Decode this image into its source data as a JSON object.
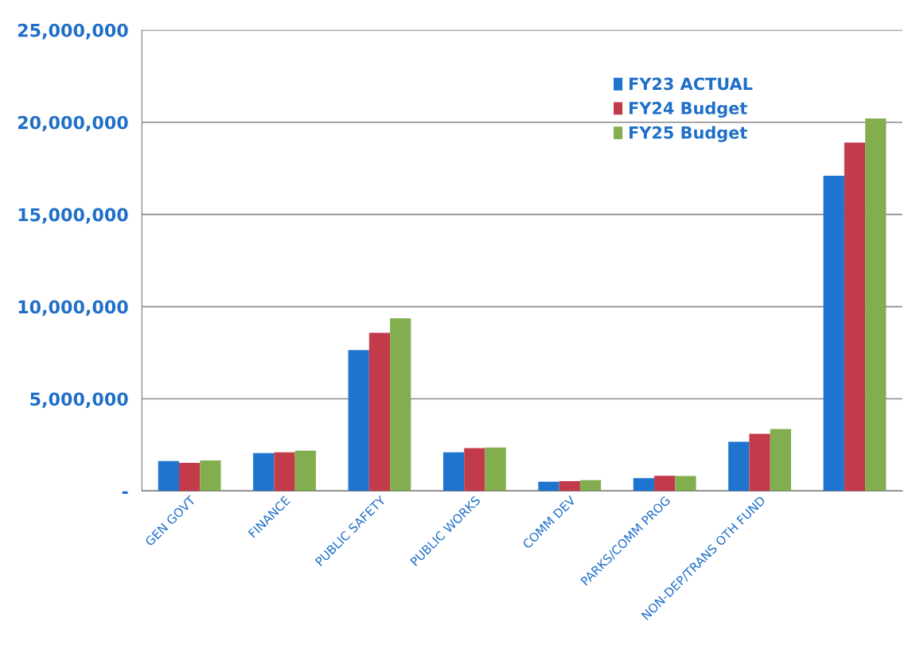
{
  "chart_data": {
    "type": "bar",
    "categories": [
      "GEN GOVT",
      "FINANCE",
      "PUBLIC SAFETY",
      "PUBLIC WORKS",
      "COMM DEV",
      "PARKS/COMM PROG",
      "NON-DEP/TRANS OTH FUND",
      null
    ],
    "series": [
      {
        "name": "FY23 ACTUAL",
        "color": "#1f74cf",
        "values": [
          1620000,
          2050000,
          7640000,
          2100000,
          500000,
          700000,
          2670000,
          17100000
        ]
      },
      {
        "name": "FY24 Budget",
        "color": "#c23b4a",
        "values": [
          1530000,
          2100000,
          8580000,
          2330000,
          530000,
          830000,
          3100000,
          18900000
        ]
      },
      {
        "name": "FY25 Budget",
        "color": "#82ae4f",
        "values": [
          1660000,
          2180000,
          9370000,
          2360000,
          590000,
          820000,
          3360000,
          20200000
        ]
      }
    ],
    "ylim": [
      0,
      25000000
    ],
    "yticks": [
      {
        "value": 0,
        "label": "-"
      },
      {
        "value": 5000000,
        "label": "5,000,000"
      },
      {
        "value": 10000000,
        "label": "10,000,000"
      },
      {
        "value": 15000000,
        "label": "15,000,000"
      },
      {
        "value": 20000000,
        "label": "20,000,000"
      },
      {
        "value": 25000000,
        "label": "25,000,000"
      }
    ],
    "grid": "y",
    "legend": "top right"
  }
}
